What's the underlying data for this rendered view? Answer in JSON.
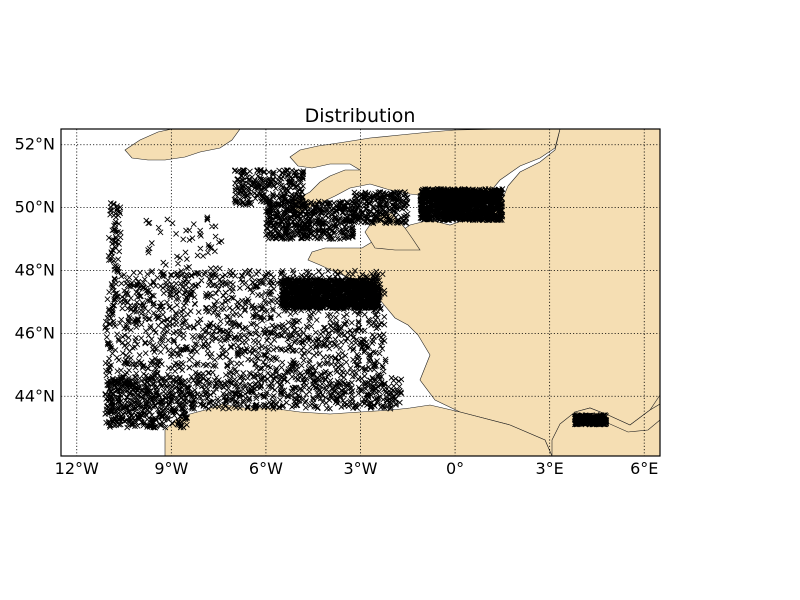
{
  "title": "Distribution",
  "colors": {
    "land": "#f5deb3",
    "sea": "#ffffff",
    "marker": "#000000",
    "frame": "#000000"
  },
  "map": {
    "projection": "plate-carree",
    "lon_range": [
      -12.5,
      6.5
    ],
    "lat_range": [
      42.1,
      52.5
    ],
    "grid": true
  },
  "x_ticks": [
    {
      "value": -12,
      "label": "12°W"
    },
    {
      "value": -9,
      "label": "9°W"
    },
    {
      "value": -6,
      "label": "6°W"
    },
    {
      "value": -3,
      "label": "3°W"
    },
    {
      "value": 0,
      "label": "0°"
    },
    {
      "value": 3,
      "label": "3°E"
    },
    {
      "value": 6,
      "label": "6°E"
    }
  ],
  "y_ticks": [
    {
      "value": 52,
      "label": "52°N"
    },
    {
      "value": 50,
      "label": "50°N"
    },
    {
      "value": 48,
      "label": "48°N"
    },
    {
      "value": 46,
      "label": "46°N"
    },
    {
      "value": 44,
      "label": "44°N"
    }
  ],
  "marker_symbol": "x",
  "observation_regions": [
    {
      "lon": [
        -11.1,
        -2.2
      ],
      "lat": [
        44.6,
        48.0
      ],
      "density": "very-high"
    },
    {
      "lon": [
        -11.1,
        -8.5
      ],
      "lat": [
        43.0,
        44.6
      ],
      "density": "high"
    },
    {
      "lon": [
        -8.5,
        -1.7
      ],
      "lat": [
        43.6,
        44.6
      ],
      "density": "high"
    },
    {
      "lon": [
        -5.5,
        -2.4
      ],
      "lat": [
        46.8,
        47.7
      ],
      "density": "very-high"
    },
    {
      "lon": [
        -6.0,
        -3.2
      ],
      "lat": [
        49.0,
        50.2
      ],
      "density": "high"
    },
    {
      "lon": [
        -3.2,
        -1.5
      ],
      "lat": [
        49.5,
        50.5
      ],
      "density": "medium"
    },
    {
      "lon": [
        -1.1,
        1.5
      ],
      "lat": [
        49.6,
        50.6
      ],
      "density": "very-high"
    },
    {
      "lon": [
        -7.0,
        -4.8
      ],
      "lat": [
        50.1,
        51.2
      ],
      "density": "medium"
    },
    {
      "lon": [
        -9.8,
        -7.4
      ],
      "lat": [
        47.8,
        49.8
      ],
      "density": "low"
    },
    {
      "lon": [
        -11.0,
        -10.6
      ],
      "lat": [
        48.0,
        50.2
      ],
      "density": "low"
    },
    {
      "lon": [
        3.8,
        4.8
      ],
      "lat": [
        43.1,
        43.4
      ],
      "density": "medium"
    }
  ]
}
